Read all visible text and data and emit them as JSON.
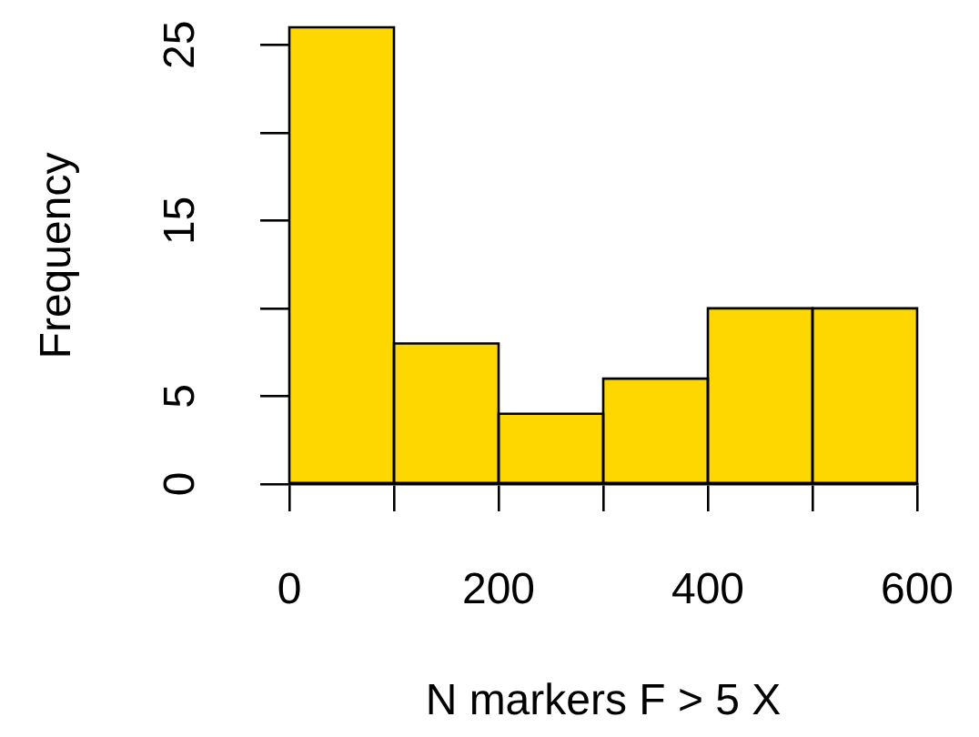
{
  "chart_data": {
    "type": "histogram",
    "xlabel": "N markers F > 5 X",
    "ylabel": "Frequency",
    "bins": [
      0,
      100,
      200,
      300,
      400,
      500,
      600
    ],
    "values": [
      26,
      8,
      4,
      6,
      10,
      10
    ],
    "color": "#ffd700",
    "xlim": [
      0,
      600
    ],
    "ylim": [
      0,
      26
    ],
    "xticks": [
      0,
      {
        "value": 100,
        "label": null
      },
      200,
      {
        "value": 300,
        "label": null
      },
      400,
      {
        "value": 500,
        "label": null
      },
      600
    ],
    "yticks": [
      0,
      5,
      {
        "value": 10,
        "label": null
      },
      15,
      {
        "value": 20,
        "label": null
      },
      25
    ],
    "grid": false,
    "legend": false
  }
}
